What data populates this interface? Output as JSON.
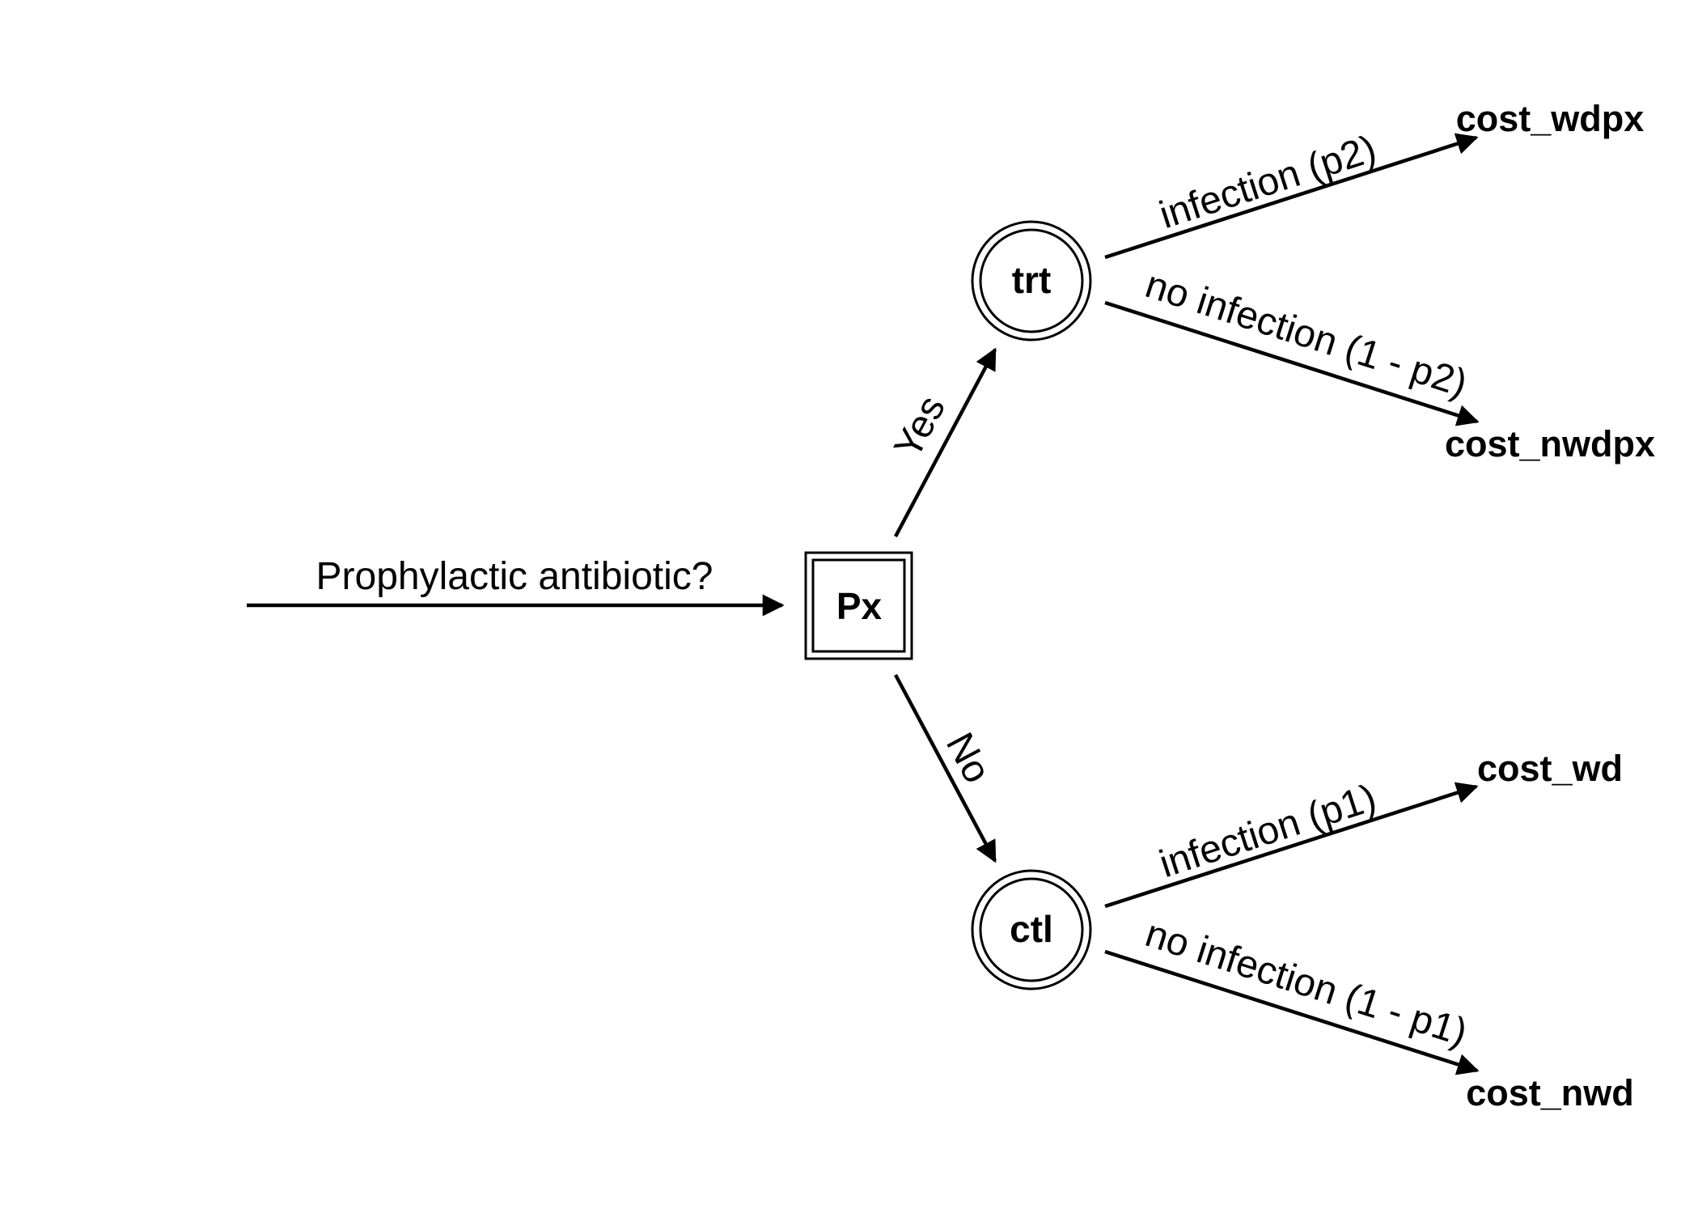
{
  "diagram": {
    "question": "Prophylactic antibiotic?",
    "decision_node": {
      "label": "Px"
    },
    "chance_nodes": {
      "treatment": {
        "label": "trt"
      },
      "control": {
        "label": "ctl"
      }
    },
    "branches": {
      "yes": "Yes",
      "no": "No",
      "trt_infection": "infection (p2)",
      "trt_no_infection": "no infection (1 - p2)",
      "ctl_infection": "infection (p1)",
      "ctl_no_infection": "no infection (1 - p1)"
    },
    "terminals": {
      "wdpx": "cost_wdpx",
      "nwdpx": "cost_nwdpx",
      "wd": "cost_wd",
      "nwd": "cost_nwd"
    },
    "colors": {
      "stroke": "#000000",
      "background": "#ffffff"
    }
  }
}
